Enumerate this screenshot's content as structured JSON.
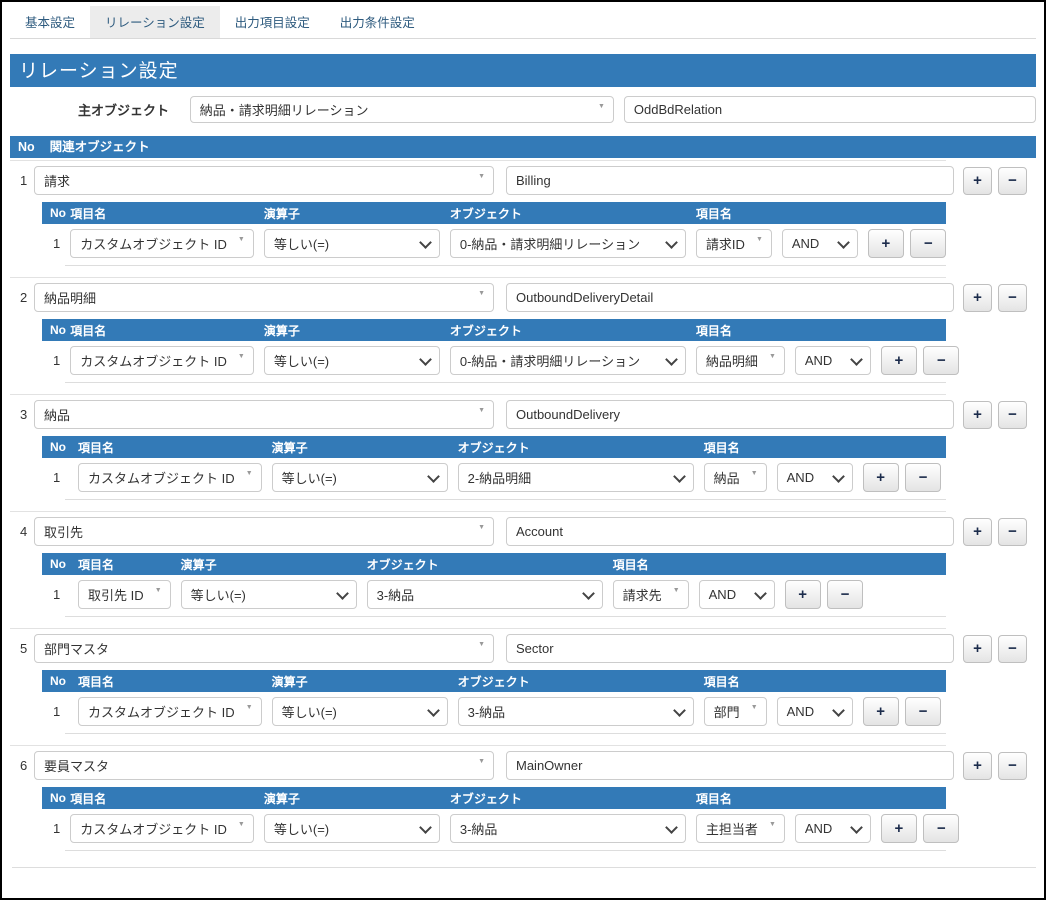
{
  "tabs": [
    {
      "label": "基本設定",
      "active": false
    },
    {
      "label": "リレーション設定",
      "active": true
    },
    {
      "label": "出力項目設定",
      "active": false
    },
    {
      "label": "出力条件設定",
      "active": false
    }
  ],
  "page_title": "リレーション設定",
  "main_object": {
    "label": "主オブジェクト",
    "selected": "納品・請求明細リレーション",
    "api_name": "OddBdRelation"
  },
  "related_header": {
    "no_label": "No",
    "title": "関連オブジェクト"
  },
  "condition_columns": {
    "no": "No",
    "field": "項目名",
    "operator": "演算子",
    "object": "オブジェクト",
    "field2": "項目名"
  },
  "buttons": {
    "add": "+",
    "remove": "−"
  },
  "colors": {
    "accent": "#337ab7",
    "active_tab_bg": "#ececec"
  },
  "sections": [
    {
      "no": "1",
      "object": "請求",
      "api_name": "Billing",
      "cond": {
        "no": "1",
        "field": "カスタムオブジェクト ID",
        "operator": "等しい(=)",
        "object": "0-納品・請求明細リレーション",
        "field2": "請求ID",
        "logic": "AND"
      }
    },
    {
      "no": "2",
      "object": "納品明細",
      "api_name": "OutboundDeliveryDetail",
      "cond": {
        "no": "1",
        "field": "カスタムオブジェクト ID",
        "operator": "等しい(=)",
        "object": "0-納品・請求明細リレーション",
        "field2": "納品明細",
        "logic": "AND"
      }
    },
    {
      "no": "3",
      "object": "納品",
      "api_name": "OutboundDelivery",
      "cond": {
        "no": "1",
        "field": "カスタムオブジェクト ID",
        "operator": "等しい(=)",
        "object": "2-納品明細",
        "field2": "納品",
        "logic": "AND"
      }
    },
    {
      "no": "4",
      "object": "取引先",
      "api_name": "Account",
      "cond": {
        "no": "1",
        "field": "取引先 ID",
        "operator": "等しい(=)",
        "object": "3-納品",
        "field2": "請求先",
        "logic": "AND"
      }
    },
    {
      "no": "5",
      "object": "部門マスタ",
      "api_name": "Sector",
      "cond": {
        "no": "1",
        "field": "カスタムオブジェクト ID",
        "operator": "等しい(=)",
        "object": "3-納品",
        "field2": "部門",
        "logic": "AND"
      }
    },
    {
      "no": "6",
      "object": "要員マスタ",
      "api_name": "MainOwner",
      "cond": {
        "no": "1",
        "field": "カスタムオブジェクト ID",
        "operator": "等しい(=)",
        "object": "3-納品",
        "field2": "主担当者",
        "logic": "AND"
      }
    }
  ]
}
